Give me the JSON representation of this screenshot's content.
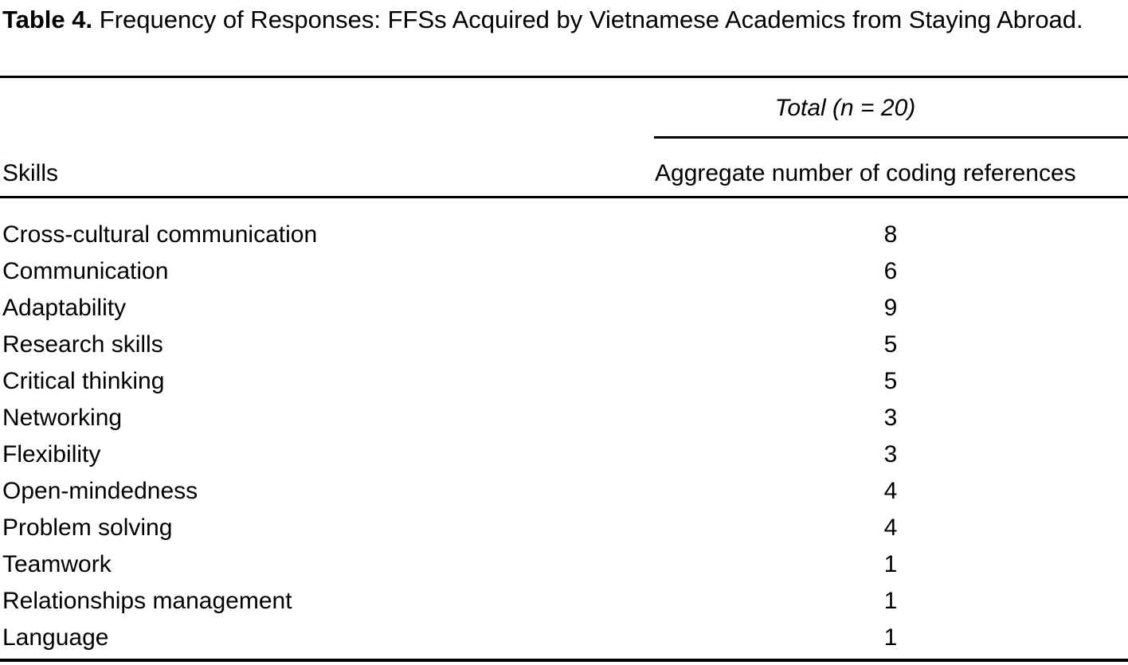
{
  "caption": {
    "label": "Table 4.",
    "text": "Frequency of Responses: FFSs Acquired by Vietnamese Academics from Staying Abroad."
  },
  "table": {
    "group_header": "Total (n = 20)",
    "columns": [
      "Skills",
      "Aggregate number of coding references"
    ],
    "rows": [
      {
        "skill": "Cross-cultural communication",
        "value": "8"
      },
      {
        "skill": "Communication",
        "value": "6"
      },
      {
        "skill": "Adaptability",
        "value": "9"
      },
      {
        "skill": "Research skills",
        "value": "5"
      },
      {
        "skill": "Critical thinking",
        "value": "5"
      },
      {
        "skill": "Networking",
        "value": "3"
      },
      {
        "skill": "Flexibility",
        "value": "3"
      },
      {
        "skill": "Open-mindedness",
        "value": "4"
      },
      {
        "skill": "Problem solving",
        "value": "4"
      },
      {
        "skill": "Teamwork",
        "value": "1"
      },
      {
        "skill": "Relationships management",
        "value": "1"
      },
      {
        "skill": "Language",
        "value": "1"
      }
    ]
  },
  "colors": {
    "text": "#000000",
    "background": "#ffffff",
    "rule": "#000000"
  }
}
